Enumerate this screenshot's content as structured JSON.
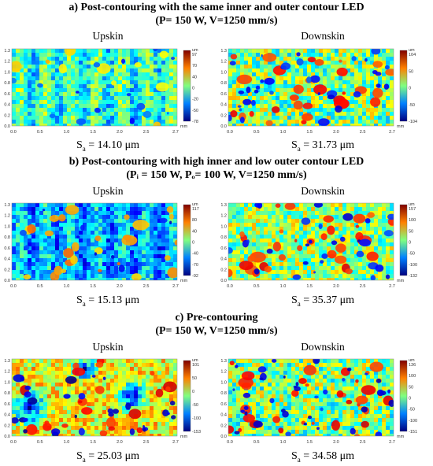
{
  "sections": [
    {
      "id": "a",
      "title_line1": "a)  Post-contouring with the same inner and outer contour LED",
      "title_line2": "(P= 150 W, V=1250 mm/s)",
      "panels": [
        {
          "label": "Upskin",
          "sa_prefix": "S",
          "sa_sub": "a",
          "sa_value": " = 14.10 μm",
          "scale": [
            "97",
            "70",
            "40",
            "0",
            "-20",
            "-50",
            "-78"
          ],
          "unit": "um"
        },
        {
          "label": "Downskin",
          "sa_prefix": "S",
          "sa_sub": "a",
          "sa_value": " = 31.73 μm",
          "scale": [
            "104",
            "50",
            "0",
            "-50",
            "-104"
          ],
          "unit": "um"
        }
      ]
    },
    {
      "id": "b",
      "title_line1": "b)  Post-contouring with high inner and low outer contour LED",
      "title_line2": "(Pᵢ = 150 W, Pₒ= 100 W, V=1250 mm/s)",
      "panels": [
        {
          "label": "Upskin",
          "sa_prefix": "S",
          "sa_sub": "a",
          "sa_value": " = 15.13 μm",
          "scale": [
            "117",
            "80",
            "40",
            "0",
            "-40",
            "-70",
            "-92"
          ],
          "unit": "um"
        },
        {
          "label": "Downskin",
          "sa_prefix": "S",
          "sa_sub": "a",
          "sa_value": " = 35.37 μm",
          "scale": [
            "157",
            "100",
            "50",
            "0",
            "-50",
            "-100",
            "-132"
          ],
          "unit": "um"
        }
      ]
    },
    {
      "id": "c",
      "title_line1": "c)  Pre-contouring",
      "title_line2": "(P= 150 W, V=1250 mm/s)",
      "panels": [
        {
          "label": "Upskin",
          "sa_prefix": "S",
          "sa_sub": "a",
          "sa_value": " = 25.03 μm",
          "scale": [
            "101",
            "50",
            "0",
            "-50",
            "-100",
            "-153"
          ],
          "unit": "um"
        },
        {
          "label": "Downskin",
          "sa_prefix": "S",
          "sa_sub": "a",
          "sa_value": " = 34.58 μm",
          "scale": [
            "136",
            "100",
            "50",
            "0",
            "-50",
            "-100",
            "-151"
          ],
          "unit": "um"
        }
      ]
    }
  ],
  "axis": {
    "x_ticks": [
      "0.0",
      "0.5",
      "1.0",
      "1.5",
      "2.0",
      "2.5",
      "2.7"
    ],
    "y_ticks": [
      "1.3",
      "1.2",
      "1.0",
      "0.8",
      "0.6",
      "0.4",
      "0.2",
      "0.0"
    ],
    "unit": "mm"
  }
}
